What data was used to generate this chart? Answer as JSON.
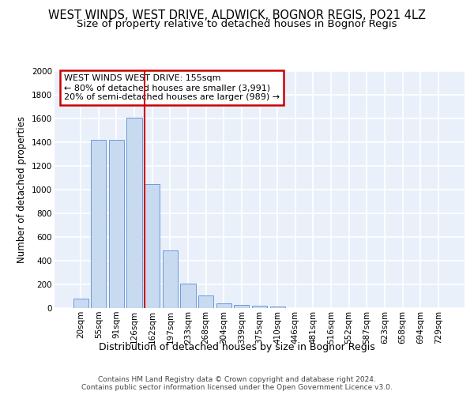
{
  "title": "WEST WINDS, WEST DRIVE, ALDWICK, BOGNOR REGIS, PO21 4LZ",
  "subtitle": "Size of property relative to detached houses in Bognor Regis",
  "xlabel": "Distribution of detached houses by size in Bognor Regis",
  "ylabel": "Number of detached properties",
  "categories": [
    "20sqm",
    "55sqm",
    "91sqm",
    "126sqm",
    "162sqm",
    "197sqm",
    "233sqm",
    "268sqm",
    "304sqm",
    "339sqm",
    "375sqm",
    "410sqm",
    "446sqm",
    "481sqm",
    "516sqm",
    "552sqm",
    "587sqm",
    "623sqm",
    "658sqm",
    "694sqm",
    "729sqm"
  ],
  "values": [
    80,
    1420,
    1420,
    1610,
    1050,
    490,
    205,
    105,
    40,
    25,
    20,
    15,
    0,
    0,
    0,
    0,
    0,
    0,
    0,
    0,
    0
  ],
  "bar_color": "#c8daf0",
  "bar_edge_color": "#5b8fd4",
  "background_color": "#eaf0fa",
  "grid_color": "#ffffff",
  "red_line_x": 4.0,
  "annotation_text": "WEST WINDS WEST DRIVE: 155sqm\n← 80% of detached houses are smaller (3,991)\n20% of semi-detached houses are larger (989) →",
  "annotation_box_color": "#ffffff",
  "annotation_box_edge": "#cc0000",
  "footnote": "Contains HM Land Registry data © Crown copyright and database right 2024.\nContains public sector information licensed under the Open Government Licence v3.0.",
  "ylim": [
    0,
    2000
  ],
  "yticks": [
    0,
    200,
    400,
    600,
    800,
    1000,
    1200,
    1400,
    1600,
    1800,
    2000
  ],
  "title_fontsize": 10.5,
  "subtitle_fontsize": 9.5,
  "xlabel_fontsize": 9,
  "ylabel_fontsize": 8.5,
  "tick_fontsize": 7.5,
  "annotation_fontsize": 8,
  "footnote_fontsize": 6.5
}
